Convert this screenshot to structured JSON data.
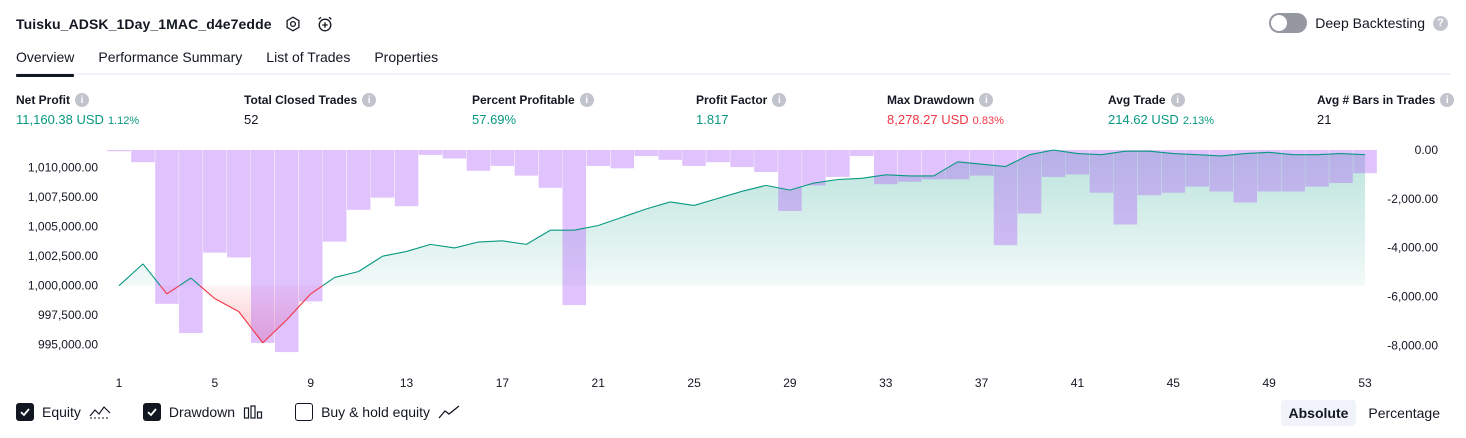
{
  "header": {
    "title": "Tuisku_ADSK_1Day_1MAC_d4e7edde",
    "settings_icon": "gear-icon",
    "alert_icon": "add-alert-icon"
  },
  "deep_backtesting": {
    "label": "Deep Backtesting",
    "enabled": false,
    "help_icon": "question-icon"
  },
  "tabs": [
    {
      "label": "Overview",
      "active": true
    },
    {
      "label": "Performance Summary",
      "active": false
    },
    {
      "label": "List of Trades",
      "active": false
    },
    {
      "label": "Properties",
      "active": false
    }
  ],
  "metrics": {
    "net_profit": {
      "label": "Net Profit",
      "value": "11,160.38 USD",
      "pct": "1.12%"
    },
    "total_closed_trades": {
      "label": "Total Closed Trades",
      "value": "52"
    },
    "percent_profitable": {
      "label": "Percent Profitable",
      "value": "57.69%"
    },
    "profit_factor": {
      "label": "Profit Factor",
      "value": "1.817"
    },
    "max_drawdown": {
      "label": "Max Drawdown",
      "value": "8,278.27 USD",
      "pct": "0.83%"
    },
    "avg_trade": {
      "label": "Avg Trade",
      "value": "214.62 USD",
      "pct": "2.13%"
    },
    "avg_bars": {
      "label": "Avg # Bars in Trades",
      "value": "21"
    }
  },
  "chart_data": {
    "type": "area",
    "x": [
      1,
      2,
      3,
      4,
      5,
      6,
      7,
      8,
      9,
      10,
      11,
      12,
      13,
      14,
      15,
      16,
      17,
      18,
      19,
      20,
      21,
      22,
      23,
      24,
      25,
      26,
      27,
      28,
      29,
      30,
      31,
      32,
      33,
      34,
      35,
      36,
      37,
      38,
      39,
      40,
      41,
      42,
      43,
      44,
      45,
      46,
      47,
      48,
      49,
      50,
      51,
      52,
      53
    ],
    "x_ticks": [
      "1",
      "5",
      "9",
      "13",
      "17",
      "21",
      "25",
      "29",
      "33",
      "37",
      "41",
      "45",
      "49",
      "53"
    ],
    "y_left_ticks": [
      "1,010,000.00",
      "1,007,500.00",
      "1,005,000.00",
      "1,002,500.00",
      "1,000,000.00",
      "997,500.00",
      "995,000.00"
    ],
    "y_right_ticks": [
      "0.00",
      "-2,000.00",
      "-4,000.00",
      "-6,000.00",
      "-8,000.00"
    ],
    "ylim_left": [
      993700,
      1011500
    ],
    "ylim_right": [
      -8600,
      0
    ],
    "baseline": 1000000,
    "series": [
      {
        "name": "Equity",
        "color": "#089981",
        "negative_color": "#f23645",
        "values": [
          1000000,
          1001850,
          999300,
          1000650,
          998900,
          997800,
          995150,
          997100,
          999300,
          1000700,
          1001200,
          1002500,
          1002900,
          1003500,
          1003200,
          1003700,
          1003800,
          1003500,
          1004700,
          1004700,
          1005100,
          1005800,
          1006500,
          1007100,
          1006800,
          1007400,
          1008000,
          1008500,
          1008100,
          1008700,
          1009000,
          1009100,
          1009400,
          1009300,
          1009300,
          1010500,
          1010300,
          1010100,
          1011100,
          1011500,
          1011200,
          1011100,
          1011400,
          1011400,
          1011200,
          1011100,
          1011000,
          1011200,
          1011300,
          1011100,
          1011100,
          1011200,
          1011100
        ]
      },
      {
        "name": "Drawdown",
        "color": "#b267f7",
        "values": [
          -50,
          -500,
          -6300,
          -7500,
          -4200,
          -4400,
          -7900,
          -8278,
          -6200,
          -3750,
          -2450,
          -1950,
          -2300,
          -200,
          -350,
          -850,
          -650,
          -1050,
          -1550,
          -6350,
          -650,
          -750,
          -250,
          -400,
          -650,
          -500,
          -700,
          -900,
          -2500,
          -1450,
          -1100,
          -250,
          -1400,
          -1300,
          -1200,
          -1200,
          -1050,
          -3900,
          -2600,
          -1100,
          -1000,
          -1750,
          -3050,
          -1850,
          -1750,
          -1500,
          -1700,
          -2150,
          -1700,
          -1700,
          -1500,
          -1350,
          -950
        ]
      }
    ]
  },
  "legend": [
    {
      "label": "Equity",
      "checked": true,
      "icon": "line-chart-icon"
    },
    {
      "label": "Drawdown",
      "checked": true,
      "icon": "bar-chart-icon"
    },
    {
      "label": "Buy & hold equity",
      "checked": false,
      "icon": "trend-line-icon"
    }
  ],
  "scale_switch": {
    "options": [
      "Absolute",
      "Percentage"
    ],
    "active": "Absolute"
  }
}
